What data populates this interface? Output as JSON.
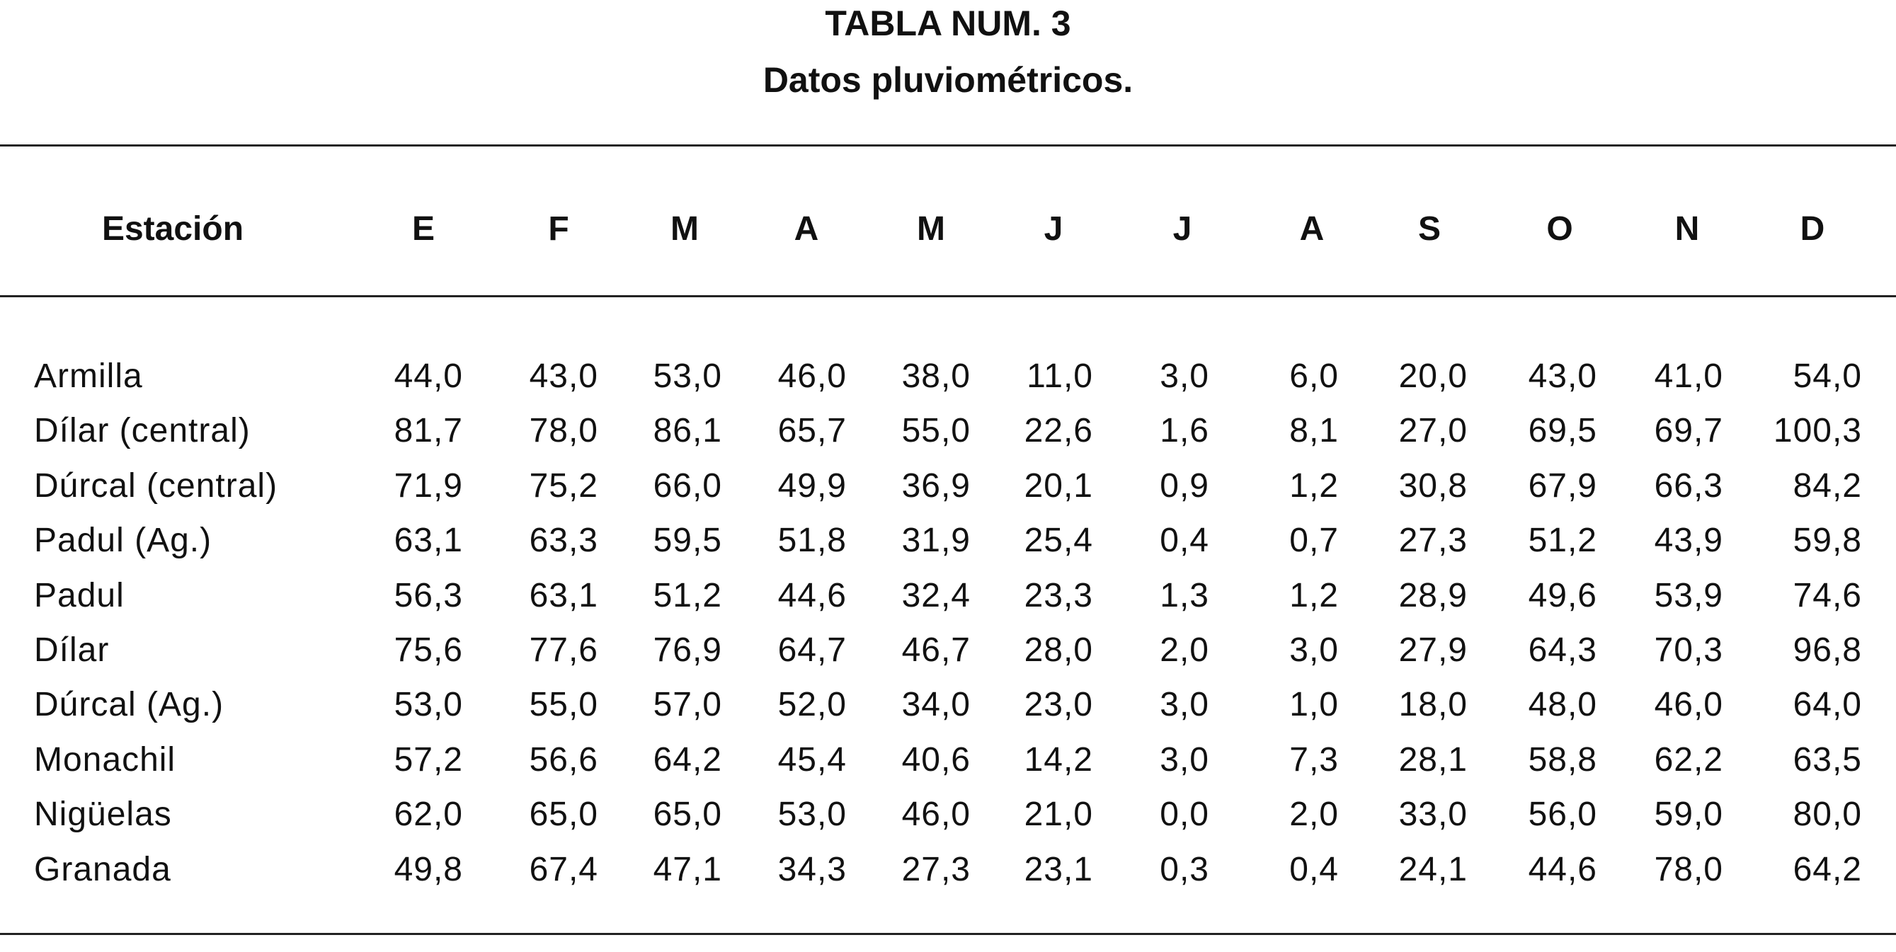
{
  "header": {
    "title": "TABLA NUM. 3",
    "subtitle": "Datos pluviométricos."
  },
  "table": {
    "columns": [
      "Estación",
      "E",
      "F",
      "M",
      "A",
      "M",
      "J",
      "J",
      "A",
      "S",
      "O",
      "N",
      "D"
    ],
    "rows": [
      [
        "Armilla",
        "44,0",
        "43,0",
        "53,0",
        "46,0",
        "38,0",
        "11,0",
        "3,0",
        "6,0",
        "20,0",
        "43,0",
        "41,0",
        "54,0"
      ],
      [
        "Dílar (central)",
        "81,7",
        "78,0",
        "86,1",
        "65,7",
        "55,0",
        "22,6",
        "1,6",
        "8,1",
        "27,0",
        "69,5",
        "69,7",
        "100,3"
      ],
      [
        "Dúrcal (central)",
        "71,9",
        "75,2",
        "66,0",
        "49,9",
        "36,9",
        "20,1",
        "0,9",
        "1,2",
        "30,8",
        "67,9",
        "66,3",
        "84,2"
      ],
      [
        "Padul (Ag.)",
        "63,1",
        "63,3",
        "59,5",
        "51,8",
        "31,9",
        "25,4",
        "0,4",
        "0,7",
        "27,3",
        "51,2",
        "43,9",
        "59,8"
      ],
      [
        "Padul",
        "56,3",
        "63,1",
        "51,2",
        "44,6",
        "32,4",
        "23,3",
        "1,3",
        "1,2",
        "28,9",
        "49,6",
        "53,9",
        "74,6"
      ],
      [
        "Dílar",
        "75,6",
        "77,6",
        "76,9",
        "64,7",
        "46,7",
        "28,0",
        "2,0",
        "3,0",
        "27,9",
        "64,3",
        "70,3",
        "96,8"
      ],
      [
        "Dúrcal (Ag.)",
        "53,0",
        "55,0",
        "57,0",
        "52,0",
        "34,0",
        "23,0",
        "3,0",
        "1,0",
        "18,0",
        "48,0",
        "46,0",
        "64,0"
      ],
      [
        "Monachil",
        "57,2",
        "56,6",
        "64,2",
        "45,4",
        "40,6",
        "14,2",
        "3,0",
        "7,3",
        "28,1",
        "58,8",
        "62,2",
        "63,5"
      ],
      [
        "Nigüelas",
        "62,0",
        "65,0",
        "65,0",
        "53,0",
        "46,0",
        "21,0",
        "0,0",
        "2,0",
        "33,0",
        "56,0",
        "59,0",
        "80,0"
      ],
      [
        "Granada",
        "49,8",
        "67,4",
        "47,1",
        "34,3",
        "27,3",
        "23,1",
        "0,3",
        "0,4",
        "24,1",
        "44,6",
        "78,0",
        "64,2"
      ]
    ]
  }
}
